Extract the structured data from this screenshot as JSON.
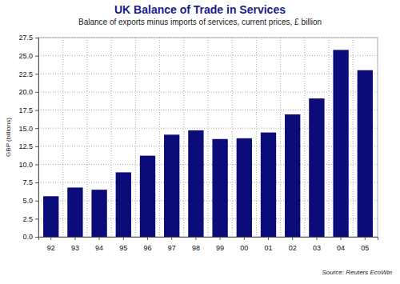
{
  "chart_data": {
    "type": "bar",
    "title": "UK Balance of Trade in Services",
    "subtitle": "Balance of exports minus imports of services, current prices, £ billion",
    "y_label": "GBP (billions)",
    "source": "Source: Reuters EcoWin",
    "categories": [
      "92",
      "93",
      "94",
      "95",
      "96",
      "97",
      "98",
      "99",
      "00",
      "01",
      "02",
      "03",
      "04",
      "05"
    ],
    "values": [
      5.6,
      6.8,
      6.5,
      8.9,
      11.2,
      14.1,
      14.7,
      13.5,
      13.6,
      14.4,
      16.9,
      19.1,
      25.8,
      23.0
    ],
    "color": "#0b0b7a",
    "ylim": [
      0,
      27.5
    ],
    "yticks": [
      {
        "value": 0,
        "label": "0.0"
      },
      2.5,
      {
        "value": 5,
        "label": "5.0"
      },
      7.5,
      {
        "value": 10,
        "label": "10.0"
      },
      12.5,
      {
        "value": 15,
        "label": "15.0"
      },
      17.5,
      {
        "value": 20,
        "label": "20.0"
      },
      22.5,
      {
        "value": 25,
        "label": "25.0"
      },
      27.5
    ],
    "grid": true
  }
}
